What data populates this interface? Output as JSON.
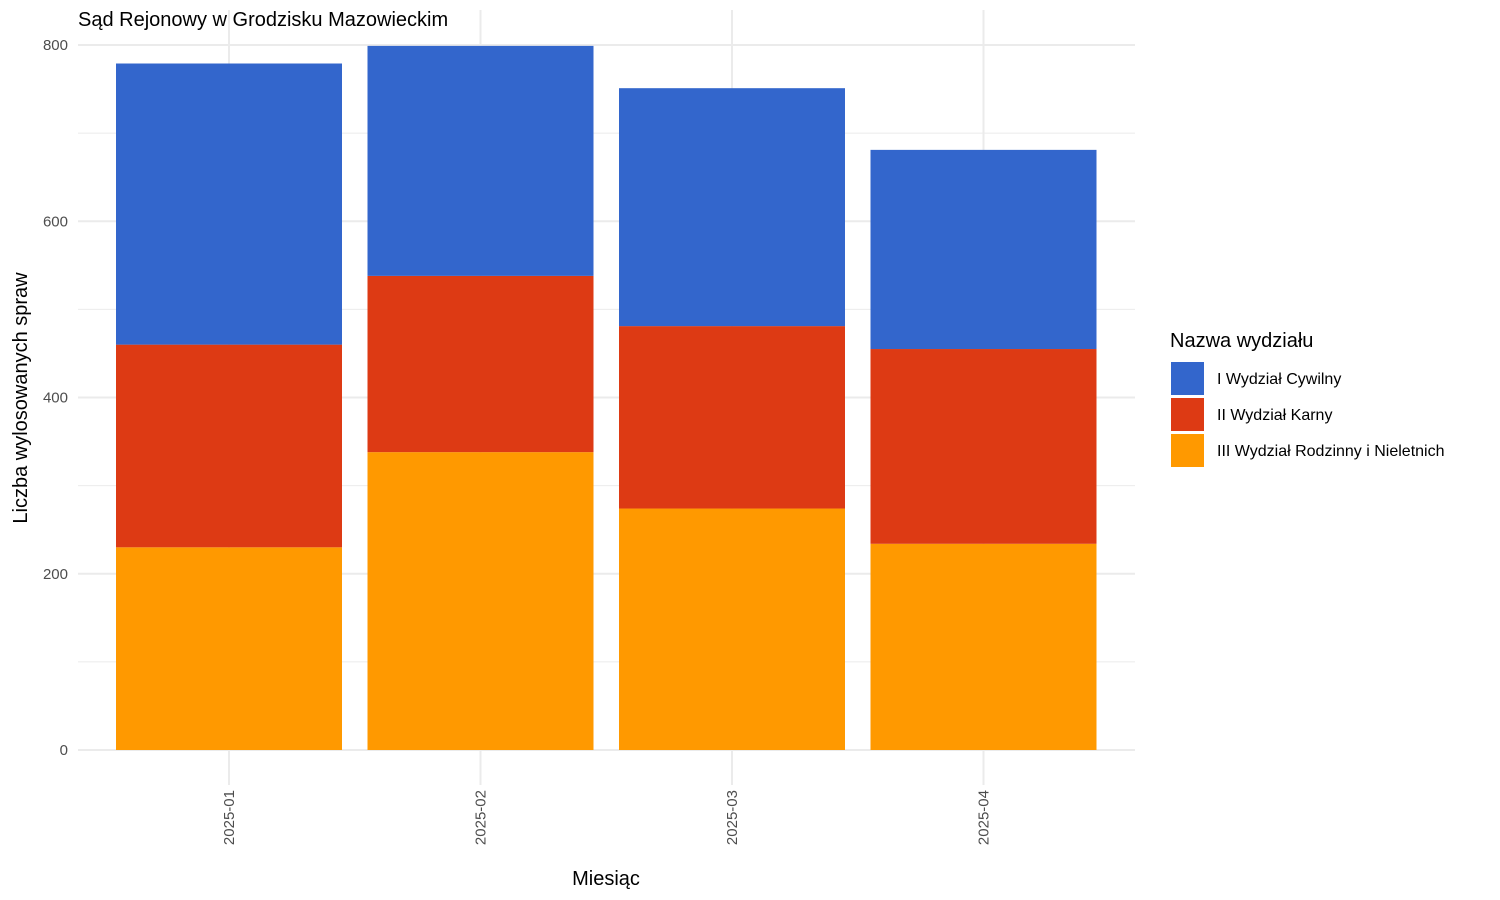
{
  "chart_data": {
    "type": "bar",
    "stacked": true,
    "title": "Sąd Rejonowy w Grodzisku Mazowieckim",
    "xlabel": "Miesiąc",
    "ylabel": "Liczba wylosowanych spraw",
    "categories": [
      "2025-01",
      "2025-02",
      "2025-03",
      "2025-04"
    ],
    "ylim": [
      0,
      800
    ],
    "yticks": [
      0,
      200,
      400,
      600,
      800
    ],
    "grid": true,
    "legend_title": "Nazwa wydziału",
    "legend_position": "right",
    "series": [
      {
        "name": "III Wydział Rodzinny i Nieletnich",
        "color": "#FF9900",
        "values": [
          230,
          338,
          274,
          234
        ]
      },
      {
        "name": "II Wydział Karny",
        "color": "#DD3A14",
        "values": [
          230,
          200,
          207,
          221
        ]
      },
      {
        "name": "I Wydział Cywilny",
        "color": "#3366CC",
        "values": [
          319,
          261,
          270,
          226
        ]
      }
    ],
    "legend_order": [
      "I Wydział Cywilny",
      "II Wydział Karny",
      "III Wydział Rodzinny i Nieletnich"
    ]
  }
}
